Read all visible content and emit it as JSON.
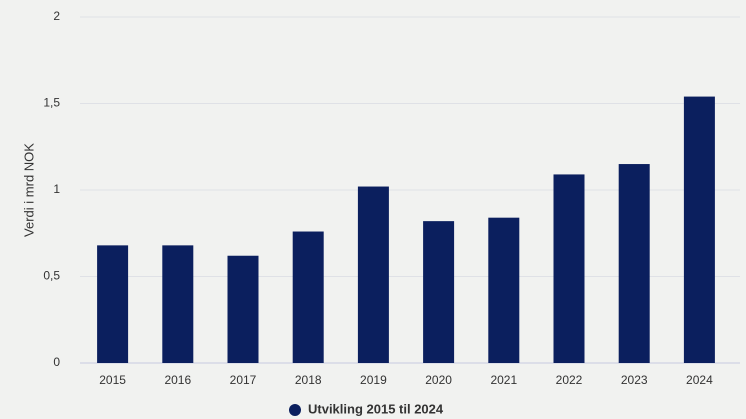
{
  "chart_data": {
    "type": "bar",
    "y_label": "Verdi i mrd NOK",
    "categories": [
      "2015",
      "2016",
      "2017",
      "2018",
      "2019",
      "2020",
      "2021",
      "2022",
      "2023",
      "2024"
    ],
    "series": [
      {
        "name": "Utvikling 2015 til 2024",
        "color": "#0b1f5e",
        "values": [
          0.68,
          0.68,
          0.62,
          0.76,
          1.02,
          0.82,
          0.84,
          1.09,
          1.15,
          1.54
        ]
      }
    ],
    "ylim": [
      0,
      2
    ],
    "yticks": [
      0,
      {
        "value": 0.5,
        "label": "0,5"
      },
      1,
      {
        "value": 1.5,
        "label": "1,5"
      },
      2
    ],
    "grid": true,
    "legend": "bottom"
  }
}
